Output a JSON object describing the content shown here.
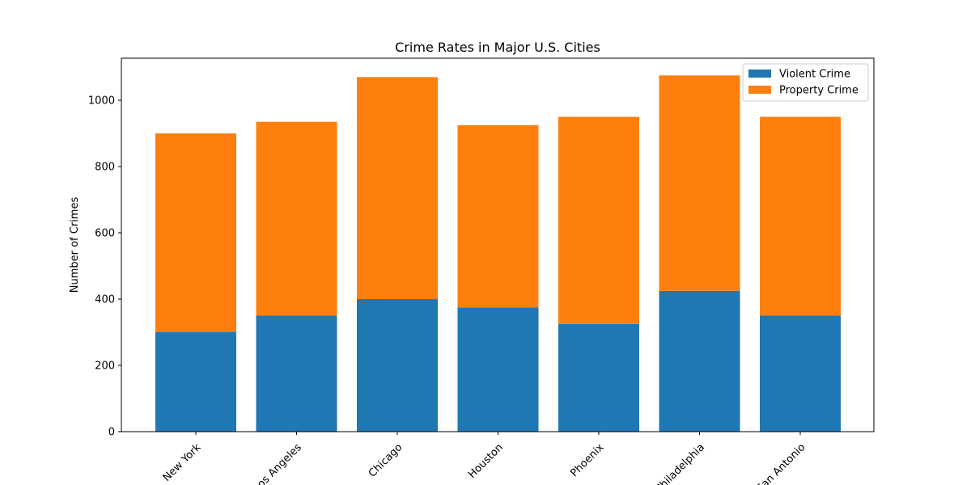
{
  "chart_data": {
    "type": "bar",
    "stacked": true,
    "title": "Crime Rates in Major U.S. Cities",
    "xlabel": "",
    "ylabel": "Number of Crimes",
    "categories": [
      "New York",
      "Los Angeles",
      "Chicago",
      "Houston",
      "Phoenix",
      "Philadelphia",
      "San Antonio"
    ],
    "series": [
      {
        "name": "Violent Crime",
        "color": "#1f77b4",
        "values": [
          300,
          350,
          400,
          375,
          325,
          425,
          350
        ]
      },
      {
        "name": "Property Crime",
        "color": "#ff7f0e",
        "values": [
          600,
          585,
          670,
          550,
          625,
          650,
          600
        ]
      }
    ],
    "ylim": [
      0,
      1127
    ],
    "yticks": [
      0,
      200,
      400,
      600,
      800,
      1000
    ],
    "grid": false,
    "legend": "top-right"
  }
}
